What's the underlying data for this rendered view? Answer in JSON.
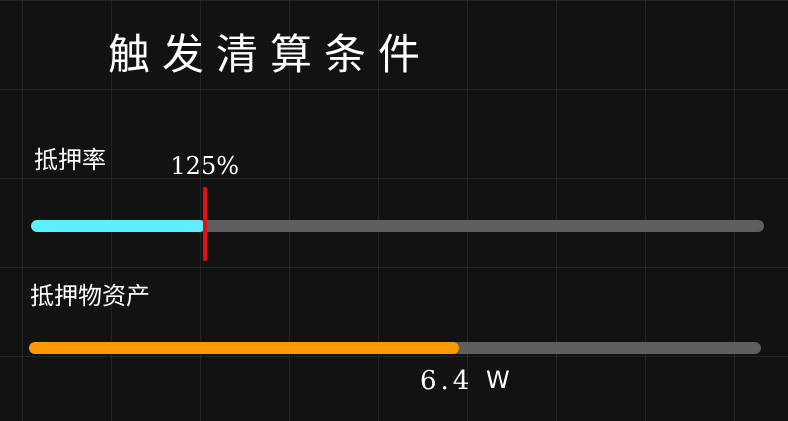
{
  "title": "触发清算条件",
  "collateral_ratio": {
    "label": "抵押率",
    "threshold_label": "125%",
    "threshold_fraction": 0.237,
    "fill_fraction": 0.237,
    "fill_color": "#5ef0ff",
    "marker_color": "#e50f12",
    "track_color": "#5f5f5f"
  },
  "collateral_asset": {
    "label": "抵押物资产",
    "value": "6.4",
    "unit": "W",
    "fill_fraction": 0.587,
    "fill_color": "#ff9900",
    "track_color": "#5f5f5f"
  }
}
